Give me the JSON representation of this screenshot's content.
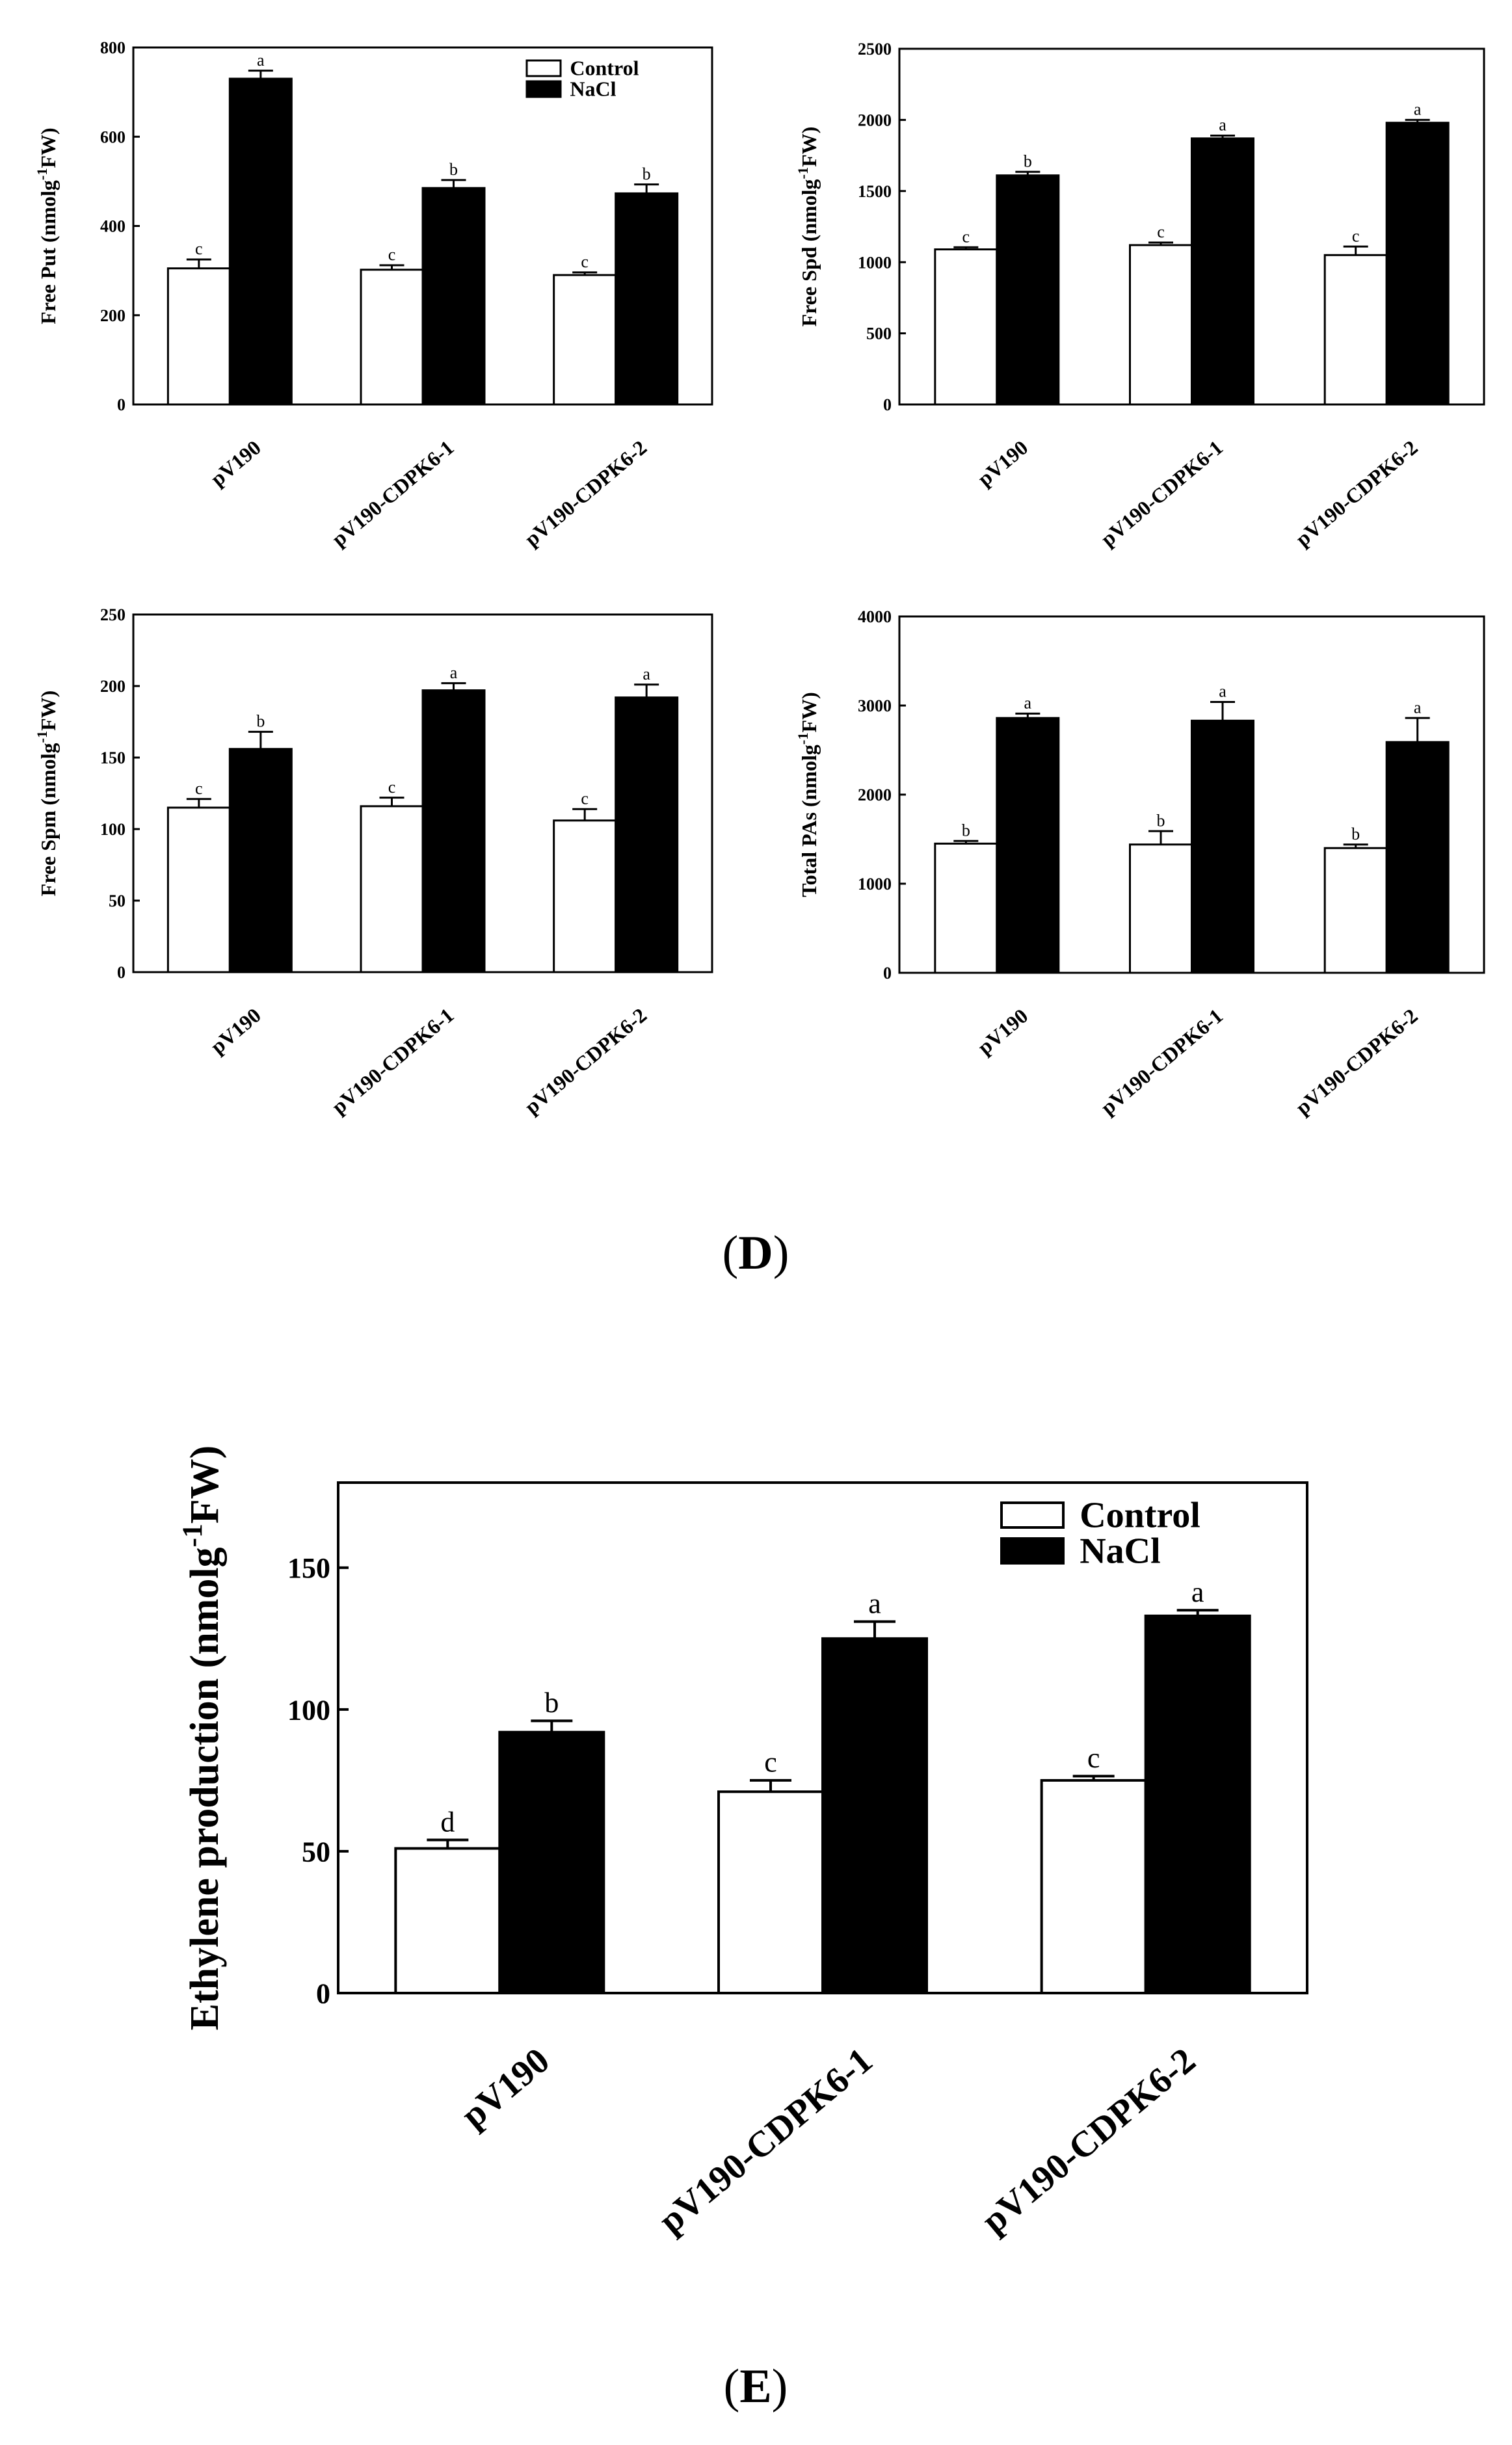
{
  "panels": {
    "d_label": "D",
    "e_label": "E"
  },
  "colors": {
    "control": "#ffffff",
    "nacl": "#000000",
    "axis": "#000000"
  },
  "chart_data": [
    {
      "id": "put",
      "type": "bar",
      "ylabel_main": "Free Put (nmolg",
      "ylabel_sup": "-1",
      "ylabel_end": "FW)",
      "categories": [
        "pV190",
        "pV190-CDPK6-1",
        "pV190-CDPK6-2"
      ],
      "ylim": [
        0,
        800
      ],
      "yticks": [
        0,
        200,
        400,
        600,
        800
      ],
      "series": [
        {
          "name": "Control",
          "values": [
            305,
            302,
            290
          ],
          "errors": [
            20,
            10,
            6
          ],
          "letters": [
            "c",
            "c",
            "c"
          ]
        },
        {
          "name": "NaCl",
          "values": [
            730,
            485,
            473
          ],
          "errors": [
            18,
            18,
            20
          ],
          "letters": [
            "a",
            "b",
            "b"
          ]
        }
      ],
      "legend": [
        "Control",
        "NaCl"
      ],
      "legend_position": "top-right"
    },
    {
      "id": "spd",
      "type": "bar",
      "ylabel_main": "Free Spd (nmolg",
      "ylabel_sup": "-1",
      "ylabel_end": "FW)",
      "categories": [
        "pV190",
        "pV190-CDPK6-1",
        "pV190-CDPK6-2"
      ],
      "ylim": [
        0,
        2500
      ],
      "yticks": [
        0,
        500,
        1000,
        1500,
        2000,
        2500
      ],
      "series": [
        {
          "name": "Control",
          "values": [
            1090,
            1120,
            1050
          ],
          "errors": [
            15,
            18,
            60
          ],
          "letters": [
            "c",
            "c",
            "c"
          ]
        },
        {
          "name": "NaCl",
          "values": [
            1610,
            1870,
            1980
          ],
          "errors": [
            25,
            20,
            20
          ],
          "letters": [
            "b",
            "a",
            "a"
          ]
        }
      ]
    },
    {
      "id": "spm",
      "type": "bar",
      "ylabel_main": "Free Spm (nmolg",
      "ylabel_sup": "-1",
      "ylabel_end": "FW)",
      "categories": [
        "pV190",
        "pV190-CDPK6-1",
        "pV190-CDPK6-2"
      ],
      "ylim": [
        0,
        250
      ],
      "yticks": [
        0,
        50,
        100,
        150,
        200,
        250
      ],
      "series": [
        {
          "name": "Control",
          "values": [
            115,
            116,
            106
          ],
          "errors": [
            6,
            6,
            8
          ],
          "letters": [
            "c",
            "c",
            "c"
          ]
        },
        {
          "name": "NaCl",
          "values": [
            156,
            197,
            192
          ],
          "errors": [
            12,
            5,
            9
          ],
          "letters": [
            "b",
            "a",
            "a"
          ]
        }
      ]
    },
    {
      "id": "pas",
      "type": "bar",
      "ylabel_main": "Total PAs (nmolg",
      "ylabel_sup": "-1",
      "ylabel_end": "FW)",
      "categories": [
        "pV190",
        "pV190-CDPK6-1",
        "pV190-CDPK6-2"
      ],
      "ylim": [
        0,
        4000
      ],
      "yticks": [
        0,
        1000,
        2000,
        3000,
        4000
      ],
      "series": [
        {
          "name": "Control",
          "values": [
            1450,
            1440,
            1400
          ],
          "errors": [
            30,
            150,
            40
          ],
          "letters": [
            "b",
            "b",
            "b"
          ]
        },
        {
          "name": "NaCl",
          "values": [
            2860,
            2830,
            2590
          ],
          "errors": [
            50,
            210,
            270
          ],
          "letters": [
            "a",
            "a",
            "a"
          ]
        }
      ]
    },
    {
      "id": "ethylene",
      "type": "bar",
      "ylabel_main": "Ethylene production (nmolg",
      "ylabel_sup": "-1",
      "ylabel_end": "FW)",
      "categories": [
        "pV190",
        "pV190-CDPK6-1",
        "pV190-CDPK6-2"
      ],
      "ylim": [
        0,
        180
      ],
      "yticks": [
        0,
        50,
        100,
        150
      ],
      "series": [
        {
          "name": "Control",
          "values": [
            51,
            71,
            75
          ],
          "errors": [
            3,
            4,
            1.5
          ],
          "letters": [
            "d",
            "c",
            "c"
          ]
        },
        {
          "name": "NaCl",
          "values": [
            92,
            125,
            133
          ],
          "errors": [
            4,
            6,
            2
          ],
          "letters": [
            "b",
            "a",
            "a"
          ]
        }
      ],
      "legend": [
        "Control",
        "NaCl"
      ],
      "legend_position": "top-right"
    }
  ]
}
